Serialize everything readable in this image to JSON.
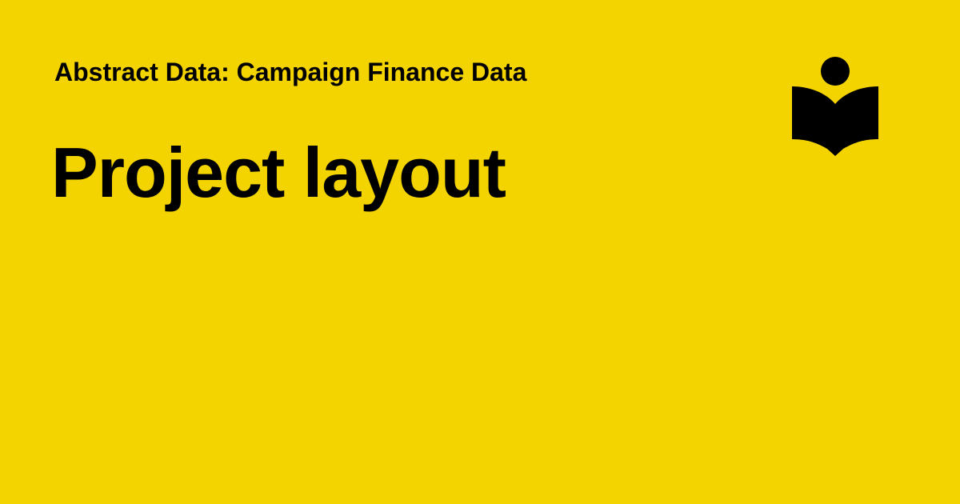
{
  "header": {
    "subtitle": "Abstract Data: Campaign Finance Data",
    "title": "Project layout"
  },
  "logo": {
    "icon": "reader-book-icon",
    "color": "#000000"
  },
  "colors": {
    "background": "#F4D400",
    "text": "#000000"
  }
}
